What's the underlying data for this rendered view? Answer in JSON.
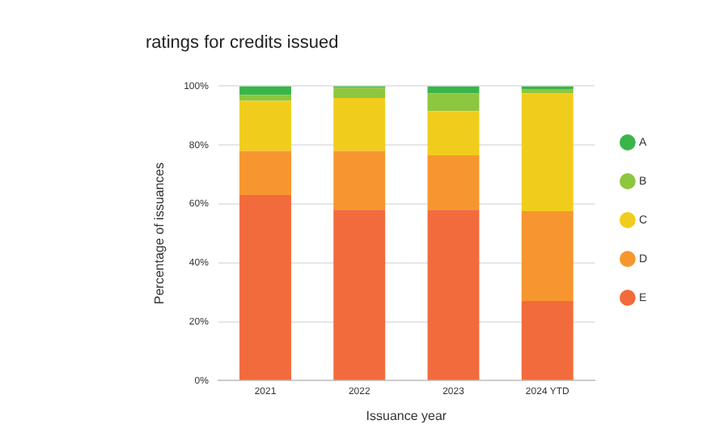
{
  "chart_data": {
    "type": "bar",
    "title": "ratings for credits issued",
    "xlabel": "Issuance year",
    "ylabel": "Percentage of issuances",
    "categories": [
      "2021",
      "2022",
      "2023",
      "2024 YTD"
    ],
    "stacked": true,
    "series": [
      {
        "name": "E",
        "color": "#f26b3c",
        "values": [
          63,
          58,
          58,
          27
        ]
      },
      {
        "name": "D",
        "color": "#f7962e",
        "values": [
          15,
          20,
          18.5,
          30.5
        ]
      },
      {
        "name": "C",
        "color": "#f0cd1c",
        "values": [
          17,
          18,
          15,
          40
        ]
      },
      {
        "name": "B",
        "color": "#8dc63f",
        "values": [
          2,
          3.5,
          6,
          1.5
        ]
      },
      {
        "name": "A",
        "color": "#3ab54a",
        "values": [
          3,
          0.5,
          2.5,
          1
        ]
      }
    ],
    "ylim": [
      0,
      100
    ],
    "yticks": [
      {
        "value": 0,
        "label": "0%"
      },
      {
        "value": 20,
        "label": "20%"
      },
      {
        "value": 40,
        "label": "40%"
      },
      {
        "value": 60,
        "label": "60%"
      },
      {
        "value": 80,
        "label": "80%"
      },
      {
        "value": 100,
        "label": "100%"
      }
    ],
    "grid": "y",
    "legend": "right"
  }
}
